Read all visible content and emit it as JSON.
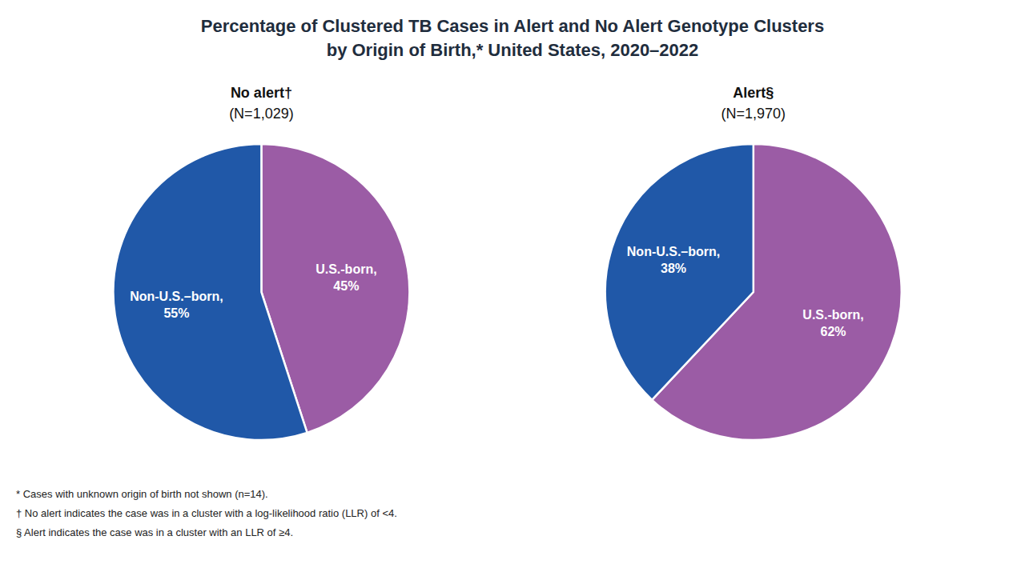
{
  "title": "Percentage of Clustered TB Cases in Alert and No Alert Genotype Clusters",
  "subtitle": "by Origin of Birth,* United States, 2020–2022",
  "annotations": [
    "* Cases with unknown origin of birth not shown (n=14).",
    "† No alert indicates the case was in a cluster with a log-likelihood ratio (LLR) of <4.",
    "§ Alert indicates the case was in a cluster with an LLR of ≥4."
  ],
  "chart_data": [
    {
      "type": "pie",
      "title": "No alert†",
      "subtitle": "(N=1,029)",
      "categories": [
        "U.S.-born,",
        "Non-U.S.–born,"
      ],
      "values": [
        45,
        55
      ],
      "value_labels": [
        "45%",
        "55%"
      ],
      "colors": [
        "#9B5CA5",
        "#2058A8"
      ],
      "data_labels": true
    },
    {
      "type": "pie",
      "title": "Alert§",
      "subtitle": "(N=1,970)",
      "categories": [
        "U.S.-born,",
        "Non-U.S.–born,"
      ],
      "values": [
        62,
        38
      ],
      "value_labels": [
        "62%",
        "38%"
      ],
      "colors": [
        "#9B5CA5",
        "#2058A8"
      ],
      "data_labels": true
    }
  ]
}
